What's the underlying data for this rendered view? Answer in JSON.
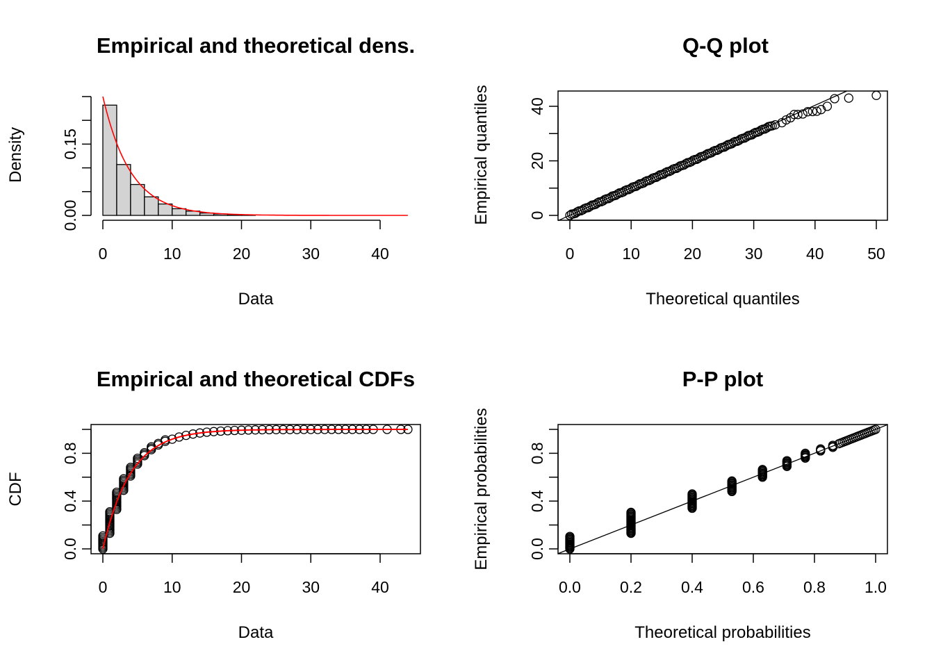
{
  "chart_data": [
    {
      "type": "bar",
      "title": "Empirical and theoretical dens.",
      "xlabel": "Data",
      "ylabel": "Density",
      "xlim": [
        0,
        44
      ],
      "ylim": [
        0,
        0.25
      ],
      "xticks": [
        "0",
        "10",
        "20",
        "30",
        "40"
      ],
      "yticks": [
        "0.00",
        "0.15"
      ],
      "bin_width": 2,
      "bin_starts": [
        0,
        2,
        4,
        6,
        8,
        10,
        12,
        14,
        16,
        18,
        20
      ],
      "values": [
        0.232,
        0.107,
        0.065,
        0.039,
        0.024,
        0.014,
        0.009,
        0.005,
        0.003,
        0.002,
        0.001
      ],
      "series": [
        {
          "values": [
            0.232,
            0.107,
            0.065,
            0.039,
            0.024,
            0.014,
            0.009,
            0.005,
            0.003,
            0.002,
            0.001
          ],
          "color": "#d3d3d3"
        },
        {
          "type": "exponential-density",
          "rate": 0.25,
          "color": "#ff0000"
        }
      ],
      "grid": false
    },
    {
      "type": "scatter",
      "title": "Q-Q plot",
      "xlabel": "Theoretical quantiles",
      "ylabel": "Empirical quantiles",
      "xlim": [
        0,
        50
      ],
      "ylim": [
        0,
        44
      ],
      "xticks": [
        "0",
        "10",
        "20",
        "30",
        "40",
        "50"
      ],
      "yticks": [
        "0",
        "20",
        "40"
      ],
      "tail_points": [
        {
          "x": 33.5,
          "y": 33.2
        },
        {
          "x": 34.6,
          "y": 34.0
        },
        {
          "x": 35.3,
          "y": 35.0
        },
        {
          "x": 36.0,
          "y": 35.8
        },
        {
          "x": 36.6,
          "y": 37.0
        },
        {
          "x": 37.2,
          "y": 37.0
        },
        {
          "x": 38.0,
          "y": 37.2
        },
        {
          "x": 38.8,
          "y": 38.0
        },
        {
          "x": 39.6,
          "y": 38.1
        },
        {
          "x": 40.3,
          "y": 38.2
        },
        {
          "x": 41.0,
          "y": 38.8
        },
        {
          "x": 42.0,
          "y": 40.0
        },
        {
          "x": 43.2,
          "y": 42.8
        },
        {
          "x": 45.5,
          "y": 43.0
        },
        {
          "x": 50.0,
          "y": 44.0
        }
      ],
      "reference_line": "y = x",
      "grid": false
    },
    {
      "type": "line",
      "title": "Empirical and theoretical CDFs",
      "xlabel": "Data",
      "ylabel": "CDF",
      "xlim": [
        0,
        44
      ],
      "ylim": [
        0,
        1
      ],
      "xticks": [
        "0",
        "10",
        "20",
        "30",
        "40"
      ],
      "yticks": [
        "0.0",
        "0.4",
        "0.8"
      ],
      "x": [
        0,
        1,
        2,
        3,
        4,
        5,
        6,
        7,
        8,
        9,
        10,
        11,
        12,
        13,
        14,
        15,
        16,
        17,
        18,
        19,
        20,
        21,
        22,
        23,
        24,
        25,
        26,
        27,
        28,
        29,
        30,
        31,
        32,
        33,
        34,
        35,
        36,
        37,
        38,
        39,
        41,
        43,
        44
      ],
      "series": [
        {
          "type": "empirical-cdf-points",
          "color": "#000000"
        },
        {
          "type": "exponential-cdf",
          "rate": 0.25,
          "color": "#ff0000"
        }
      ],
      "grid": false
    },
    {
      "type": "scatter",
      "title": "P-P plot",
      "xlabel": "Theoretical probabilities",
      "ylabel": "Empirical probabilities",
      "xlim": [
        0,
        1
      ],
      "ylim": [
        0,
        1
      ],
      "xticks": [
        "0.0",
        "0.2",
        "0.4",
        "0.6",
        "0.8",
        "1.0"
      ],
      "yticks": [
        "0.0",
        "0.4",
        "0.8"
      ],
      "clusters": [
        {
          "x": 0.0,
          "y_from": 0.0,
          "y_to": 0.11
        },
        {
          "x": 0.2,
          "y_from": 0.13,
          "y_to": 0.31
        },
        {
          "x": 0.4,
          "y_from": 0.34,
          "y_to": 0.46
        },
        {
          "x": 0.53,
          "y_from": 0.48,
          "y_to": 0.57
        },
        {
          "x": 0.63,
          "y_from": 0.6,
          "y_to": 0.67
        },
        {
          "x": 0.71,
          "y_from": 0.69,
          "y_to": 0.74
        },
        {
          "x": 0.77,
          "y_from": 0.76,
          "y_to": 0.8
        },
        {
          "x": 0.82,
          "y_from": 0.82,
          "y_to": 0.84
        },
        {
          "x": 0.86,
          "y_from": 0.85,
          "y_to": 0.87
        }
      ],
      "reference_line": "y = x",
      "grid": false
    }
  ]
}
